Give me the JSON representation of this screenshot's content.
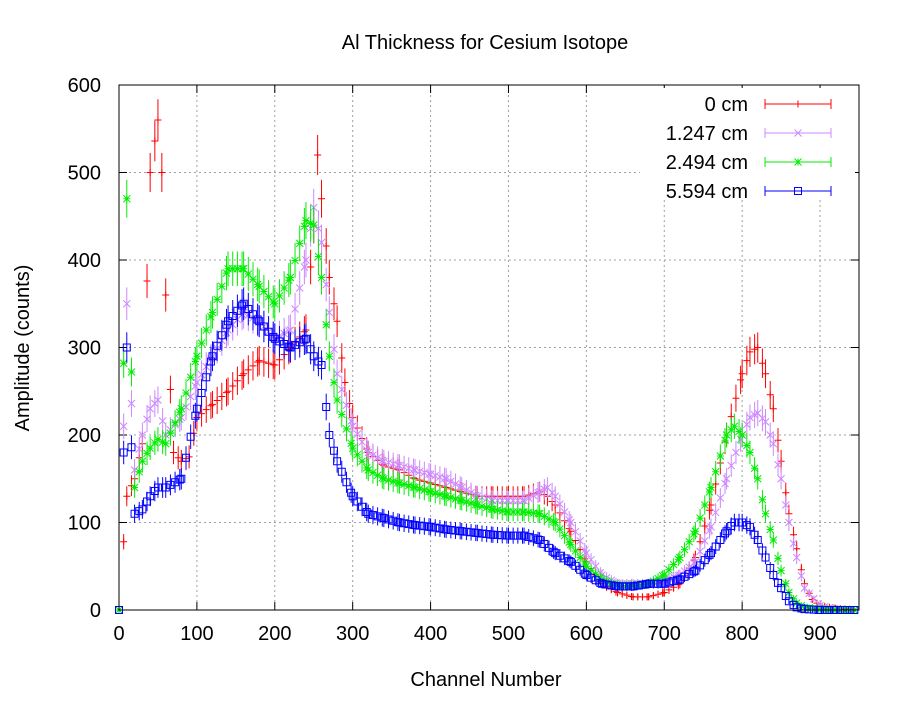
{
  "chart_data": {
    "type": "scatter",
    "title": "Al Thickness for Cesium Isotope",
    "xlabel": "Channel Number",
    "ylabel": "Amplitude (counts)",
    "xlim": [
      0,
      950
    ],
    "ylim": [
      0,
      600
    ],
    "xticks": [
      0,
      100,
      200,
      300,
      400,
      500,
      600,
      700,
      800,
      900
    ],
    "yticks": [
      0,
      100,
      200,
      300,
      400,
      500,
      600
    ],
    "grid": true,
    "error_bars": true,
    "legend_position": "top-right",
    "series": [
      {
        "name": "0 cm",
        "color": "#ff0000",
        "marker": "plus",
        "x": [
          0,
          10,
          20,
          30,
          40,
          50,
          55,
          60,
          70,
          80,
          90,
          100,
          120,
          140,
          160,
          180,
          200,
          220,
          240,
          250,
          255,
          260,
          270,
          280,
          290,
          300,
          320,
          340,
          360,
          380,
          400,
          420,
          440,
          460,
          480,
          500,
          520,
          540,
          550,
          560,
          580,
          600,
          620,
          640,
          660,
          680,
          700,
          720,
          740,
          760,
          780,
          800,
          810,
          820,
          830,
          840,
          850,
          860,
          870,
          880,
          890,
          900,
          920,
          950
        ],
        "y": [
          0,
          130,
          150,
          190,
          500,
          560,
          500,
          360,
          180,
          170,
          175,
          220,
          235,
          250,
          270,
          285,
          280,
          300,
          320,
          440,
          520,
          470,
          380,
          330,
          260,
          220,
          180,
          165,
          160,
          150,
          145,
          140,
          135,
          130,
          130,
          130,
          130,
          135,
          130,
          120,
          90,
          55,
          30,
          20,
          15,
          15,
          20,
          30,
          60,
          120,
          200,
          270,
          295,
          300,
          270,
          230,
          170,
          110,
          70,
          30,
          12,
          5,
          2,
          0
        ]
      },
      {
        "name": "1.247 cm",
        "color": "#cc88ff",
        "marker": "cross",
        "x": [
          0,
          10,
          20,
          30,
          40,
          50,
          60,
          80,
          100,
          120,
          140,
          160,
          180,
          200,
          220,
          240,
          250,
          260,
          270,
          280,
          300,
          320,
          340,
          360,
          380,
          400,
          420,
          440,
          460,
          480,
          500,
          520,
          540,
          550,
          560,
          580,
          600,
          620,
          640,
          660,
          680,
          700,
          720,
          740,
          760,
          780,
          800,
          810,
          820,
          830,
          840,
          850,
          860,
          870,
          880,
          900,
          920,
          950
        ],
        "y": [
          0,
          350,
          160,
          200,
          230,
          240,
          200,
          220,
          260,
          290,
          320,
          340,
          330,
          310,
          320,
          400,
          460,
          420,
          340,
          270,
          210,
          180,
          170,
          165,
          160,
          155,
          150,
          140,
          130,
          125,
          125,
          125,
          135,
          140,
          130,
          100,
          65,
          40,
          30,
          30,
          30,
          35,
          40,
          55,
          95,
          150,
          200,
          220,
          225,
          215,
          190,
          150,
          100,
          60,
          25,
          5,
          1,
          0
        ]
      },
      {
        "name": "2.494 cm",
        "color": "#00ee00",
        "marker": "star",
        "x": [
          0,
          10,
          20,
          30,
          40,
          50,
          60,
          80,
          100,
          120,
          140,
          160,
          180,
          200,
          220,
          240,
          250,
          260,
          270,
          280,
          300,
          320,
          340,
          360,
          380,
          400,
          420,
          440,
          460,
          480,
          500,
          520,
          540,
          560,
          580,
          600,
          620,
          640,
          660,
          680,
          700,
          720,
          740,
          760,
          780,
          790,
          800,
          810,
          820,
          830,
          840,
          850,
          860,
          870,
          880,
          900,
          920,
          950
        ],
        "y": [
          0,
          470,
          140,
          170,
          185,
          195,
          190,
          230,
          290,
          340,
          390,
          390,
          370,
          350,
          380,
          445,
          440,
          380,
          290,
          240,
          185,
          160,
          150,
          145,
          140,
          135,
          130,
          125,
          120,
          115,
          112,
          112,
          110,
          100,
          75,
          50,
          35,
          28,
          28,
          30,
          40,
          60,
          90,
          140,
          200,
          210,
          200,
          180,
          150,
          110,
          80,
          45,
          20,
          8,
          3,
          1,
          0,
          0
        ]
      },
      {
        "name": "5.594 cm",
        "color": "#0000ff",
        "marker": "square",
        "x": [
          0,
          10,
          20,
          30,
          40,
          50,
          60,
          80,
          100,
          120,
          140,
          160,
          180,
          200,
          220,
          240,
          250,
          260,
          270,
          280,
          300,
          320,
          340,
          360,
          380,
          400,
          420,
          440,
          460,
          480,
          500,
          520,
          540,
          560,
          580,
          600,
          620,
          640,
          660,
          680,
          700,
          720,
          740,
          760,
          780,
          790,
          800,
          810,
          820,
          830,
          840,
          850,
          860,
          870,
          880,
          900,
          920,
          950
        ],
        "y": [
          0,
          300,
          110,
          115,
          130,
          140,
          140,
          150,
          230,
          290,
          330,
          350,
          330,
          310,
          300,
          310,
          290,
          280,
          200,
          170,
          130,
          110,
          105,
          100,
          97,
          95,
          92,
          90,
          88,
          86,
          85,
          85,
          80,
          65,
          55,
          40,
          30,
          27,
          27,
          30,
          30,
          35,
          45,
          65,
          90,
          100,
          100,
          95,
          80,
          60,
          40,
          25,
          10,
          3,
          1,
          0,
          0,
          0
        ]
      }
    ]
  }
}
